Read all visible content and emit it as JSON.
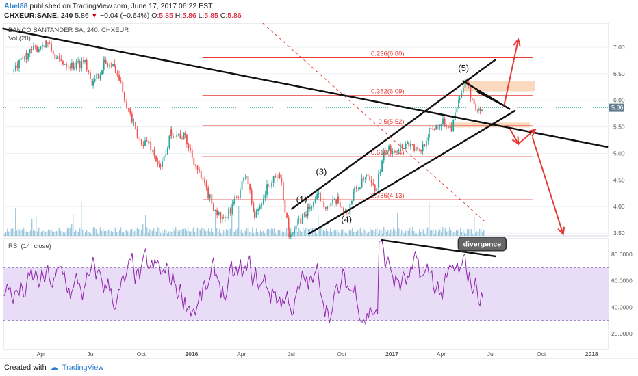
{
  "header": {
    "author": "Abel88",
    "published_text": "published on TradingView.com, June 17, 2017 06:22 EST",
    "symbol": "CHXEUR:SANE, 240",
    "last": "5.86",
    "change": "−0.04 (−0.64%)",
    "ohlc": [
      {
        "k": "O:",
        "v": "5.85"
      },
      {
        "k": "H:",
        "v": "5.86"
      },
      {
        "k": "L:",
        "v": "5.85"
      },
      {
        "k": "C:",
        "v": "5.86"
      }
    ]
  },
  "footer": {
    "created_with": "Created with",
    "brand": "TradingView"
  },
  "colors": {
    "bull": "#26a69a",
    "bear": "#ef5350",
    "rsi": "#8e24aa",
    "rsi_band": "#e9dcf7",
    "fib": "#e53935",
    "line": "#111111",
    "arrow": "#e53935",
    "volume": "#7fb8d6",
    "box": "#f5b98a",
    "grid": "#eef1f5",
    "price_tag": "#607d8b"
  },
  "chart_data": [
    {
      "type": "candlestick",
      "title": "BANCO SANTANDER SA, 240, CHXEUR",
      "volume_label": "Vol (20)",
      "x_ticks": [
        "Apr",
        "Jul",
        "Oct",
        "2016",
        "Apr",
        "Jul",
        "Oct",
        "2017",
        "Apr",
        "Jul",
        "Oct",
        "2018"
      ],
      "y_ticks": [
        "7.00",
        "6.50",
        "6.00",
        "5.50",
        "5.00",
        "4.50",
        "4.00",
        "3.50"
      ],
      "ylim": [
        3.45,
        7.45
      ],
      "last_price": "5.86",
      "price_series": [
        {
          "d": "2015-02-10",
          "p": 6.55
        },
        {
          "d": "2015-03-05",
          "p": 6.85
        },
        {
          "d": "2015-04-10",
          "p": 7.1
        },
        {
          "d": "2015-05-01",
          "p": 6.75
        },
        {
          "d": "2015-06-01",
          "p": 6.65
        },
        {
          "d": "2015-06-20",
          "p": 6.75
        },
        {
          "d": "2015-07-05",
          "p": 6.3
        },
        {
          "d": "2015-07-25",
          "p": 6.7
        },
        {
          "d": "2015-08-15",
          "p": 6.6
        },
        {
          "d": "2015-09-01",
          "p": 6.05
        },
        {
          "d": "2015-09-25",
          "p": 5.25
        },
        {
          "d": "2015-10-15",
          "p": 5.2
        },
        {
          "d": "2015-11-05",
          "p": 4.7
        },
        {
          "d": "2015-11-25",
          "p": 5.4
        },
        {
          "d": "2015-12-20",
          "p": 5.3
        },
        {
          "d": "2016-01-15",
          "p": 4.6
        },
        {
          "d": "2016-02-10",
          "p": 4.0
        },
        {
          "d": "2016-02-28",
          "p": 3.7
        },
        {
          "d": "2016-03-20",
          "p": 4.1
        },
        {
          "d": "2016-04-10",
          "p": 4.6
        },
        {
          "d": "2016-04-25",
          "p": 3.8
        },
        {
          "d": "2016-05-20",
          "p": 4.4
        },
        {
          "d": "2016-06-10",
          "p": 4.6
        },
        {
          "d": "2016-06-27",
          "p": 3.5
        },
        {
          "d": "2016-07-15",
          "p": 3.7
        },
        {
          "d": "2016-08-01",
          "p": 3.95
        },
        {
          "d": "2016-08-20",
          "p": 4.2
        },
        {
          "d": "2016-09-05",
          "p": 4.0
        },
        {
          "d": "2016-09-25",
          "p": 4.1
        },
        {
          "d": "2016-10-10",
          "p": 3.85
        },
        {
          "d": "2016-10-25",
          "p": 4.3
        },
        {
          "d": "2016-11-15",
          "p": 4.55
        },
        {
          "d": "2016-12-01",
          "p": 4.3
        },
        {
          "d": "2016-12-20",
          "p": 5.05
        },
        {
          "d": "2017-01-10",
          "p": 5.1
        },
        {
          "d": "2017-02-01",
          "p": 5.2
        },
        {
          "d": "2017-02-20",
          "p": 5.0
        },
        {
          "d": "2017-03-10",
          "p": 5.4
        },
        {
          "d": "2017-04-01",
          "p": 5.6
        },
        {
          "d": "2017-04-20",
          "p": 5.5
        },
        {
          "d": "2017-05-05",
          "p": 6.0
        },
        {
          "d": "2017-05-15",
          "p": 6.32
        },
        {
          "d": "2017-05-28",
          "p": 6.05
        },
        {
          "d": "2017-06-08",
          "p": 5.8
        },
        {
          "d": "2017-06-16",
          "p": 5.86
        }
      ],
      "fib_levels": [
        {
          "label": "0.236(6.80)",
          "price": 6.8
        },
        {
          "label": "0.382(6.09)",
          "price": 6.09
        },
        {
          "label": "0.5(5.52)",
          "price": 5.52
        },
        {
          "label": "0.618(4.94)",
          "price": 4.94
        },
        {
          "label": "0.786(4.13)",
          "price": 4.13
        }
      ],
      "wave_labels": [
        {
          "text": "(1)",
          "d": "2016-07-20",
          "p": 4.08
        },
        {
          "text": "(3)",
          "d": "2016-08-25",
          "p": 4.6
        },
        {
          "text": "(4)",
          "d": "2016-10-10",
          "p": 3.7
        },
        {
          "text": "(5)",
          "d": "2017-05-12",
          "p": 6.55
        }
      ],
      "trendlines": [
        {
          "from": {
            "d": "2015-01-20",
            "p": 7.35
          },
          "to": {
            "d": "2018-01-31",
            "p": 5.12
          }
        },
        {
          "from": {
            "d": "2016-07-01",
            "p": 3.95
          },
          "to": {
            "d": "2017-07-10",
            "p": 6.77
          }
        },
        {
          "from": {
            "d": "2016-08-01",
            "p": 3.48
          },
          "to": {
            "d": "2017-08-15",
            "p": 5.81
          }
        },
        {
          "from": {
            "d": "2017-05-10",
            "p": 6.37
          },
          "to": {
            "d": "2017-08-05",
            "p": 5.83
          }
        },
        {
          "from": {
            "d": "2017-06-05",
            "p": 6.17
          },
          "to": {
            "d": "2017-07-25",
            "p": 5.9
          }
        }
      ],
      "dashed_line": {
        "from": {
          "d": "2016-05-10",
          "p": 7.45
        },
        "to": {
          "d": "2017-06-20",
          "p": 3.72
        }
      },
      "boxes": [
        {
          "from": "2017-05-10",
          "to": "2017-09-20",
          "top": 6.36,
          "bottom": 6.17
        },
        {
          "from": "2017-04-15",
          "to": "2017-09-10",
          "top": 5.58,
          "bottom": 5.49
        }
      ],
      "arrows": [
        {
          "from": {
            "d": "2017-07-25",
            "p": 5.9
          },
          "to": {
            "d": "2017-08-20",
            "p": 7.15
          }
        },
        {
          "from": {
            "d": "2017-08-05",
            "p": 5.46
          },
          "to": {
            "d": "2017-08-20",
            "p": 5.18
          }
        },
        {
          "from": {
            "d": "2017-08-20",
            "p": 5.18
          },
          "to": {
            "d": "2017-09-20",
            "p": 5.45
          }
        },
        {
          "from": {
            "d": "2017-09-15",
            "p": 5.3
          },
          "to": {
            "d": "2017-11-10",
            "p": 3.48
          }
        }
      ]
    },
    {
      "type": "line",
      "title": "RSI (14, close)",
      "y_ticks": [
        "80.0000",
        "60.0000",
        "40.0000",
        "20.0000"
      ],
      "ylim": [
        8,
        92
      ],
      "band": [
        30,
        70
      ],
      "divergence_label": "divergence",
      "divergence_line": {
        "from": {
          "d": "2016-12-12",
          "v": 91
        },
        "to": {
          "d": "2017-07-10",
          "v": 78.5
        }
      }
    }
  ]
}
